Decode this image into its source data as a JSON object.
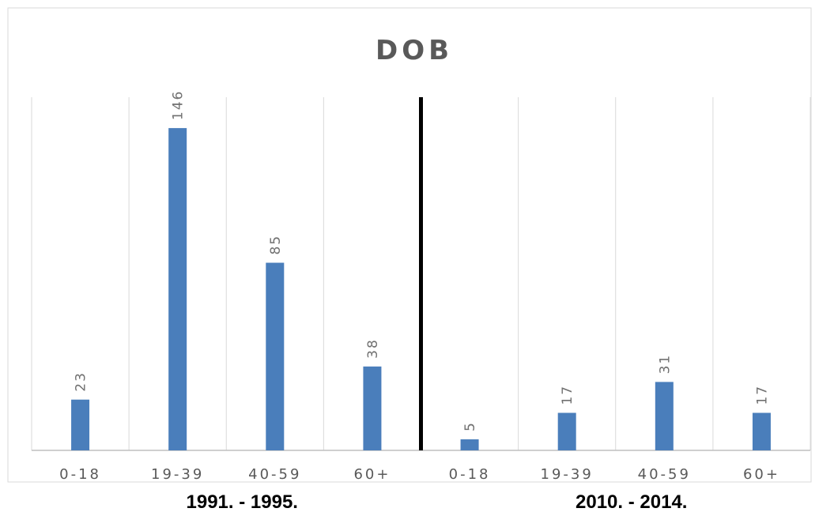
{
  "chart_data": {
    "type": "bar",
    "title": "DOB",
    "categories": [
      "0-18",
      "19-39",
      "40-59",
      "60+",
      "0-18",
      "19-39",
      "40-59",
      "60+"
    ],
    "values": [
      23,
      146,
      85,
      38,
      5,
      17,
      31,
      17
    ],
    "groups": [
      {
        "label": "1991. - 1995.",
        "start_index": 0,
        "end_index": 3
      },
      {
        "label": "2010. - 2014.",
        "start_index": 4,
        "end_index": 7
      }
    ],
    "ylim": [
      0,
      160
    ],
    "grid": "vertical",
    "legend": "none",
    "data_labels": "rotated",
    "colors": {
      "bar": "#4a7ebb",
      "grid": "#d9d9d9",
      "axis": "#bfbfbf",
      "divider": "#000000",
      "text": "#595959"
    }
  }
}
